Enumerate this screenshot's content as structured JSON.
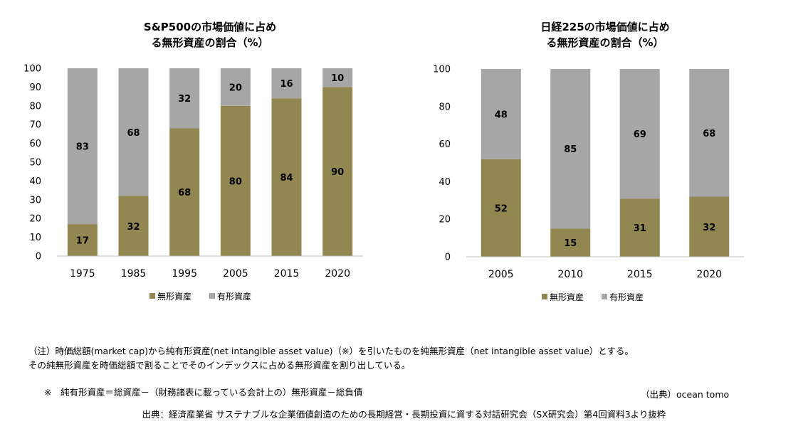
{
  "notes": {
    "note1": "（注）時価総額(market cap)から純有形資産(net intangible asset value)（※）を引いたものを純無形資産（net intangible asset value）とする。",
    "note2": "その純無形資産を時価総額で割ることでそのインデックスに占める無形資産を割り出している。",
    "note3": "※　純有形資産＝総資産－（財務諸表に載っている会計上の）無形資産－総負債",
    "credit": "（出典）ocean tomo",
    "source": "出典：経済産業省 サステナブルな企業価値創造のための長期経営・長期投資に資する対話研究会（SX研究会）第4回資料3より抜粋"
  },
  "colors": {
    "intangible": "#928651",
    "tangible": "#a6a6a6",
    "axis": "#bfbfbf"
  },
  "chart_data": [
    {
      "type": "bar",
      "stacked": true,
      "title": "S&P500の市場価値に占め\nる無形資産の割合（%）",
      "categories": [
        "1975",
        "1985",
        "1995",
        "2005",
        "2015",
        "2020"
      ],
      "series": [
        {
          "name": "無形資産",
          "values": [
            17,
            32,
            68,
            80,
            84,
            90
          ]
        },
        {
          "name": "有形資産",
          "values": [
            83,
            68,
            32,
            20,
            16,
            10
          ]
        }
      ],
      "ylim": [
        0,
        100
      ],
      "yticks": [
        0,
        10,
        20,
        30,
        40,
        50,
        60,
        70,
        80,
        90,
        100
      ],
      "legend": "bottom",
      "grid": false
    },
    {
      "type": "bar",
      "stacked": true,
      "title": "日経225の市場価値に占め\nる無形資産の割合（%）",
      "categories": [
        "2005",
        "2010",
        "2015",
        "2020"
      ],
      "series": [
        {
          "name": "無形資産",
          "values": [
            52,
            15,
            31,
            32
          ]
        },
        {
          "name": "有形資産",
          "values": [
            48,
            85,
            69,
            68
          ]
        }
      ],
      "ylim": [
        0,
        100
      ],
      "yticks": [
        0,
        20,
        40,
        60,
        80,
        100
      ],
      "legend": "bottom",
      "grid": false
    }
  ]
}
